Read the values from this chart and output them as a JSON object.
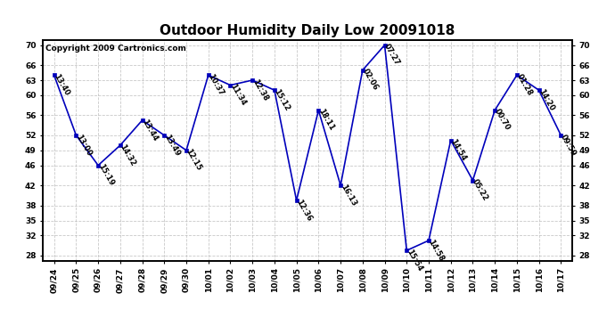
{
  "title": "Outdoor Humidity Daily Low 20091018",
  "copyright": "Copyright 2009 Cartronics.com",
  "x_labels": [
    "09/24",
    "09/25",
    "09/26",
    "09/27",
    "09/28",
    "09/29",
    "09/30",
    "10/01",
    "10/02",
    "10/03",
    "10/04",
    "10/05",
    "10/06",
    "10/07",
    "10/08",
    "10/09",
    "10/10",
    "10/11",
    "10/12",
    "10/13",
    "10/14",
    "10/15",
    "10/16",
    "10/17"
  ],
  "y_values": [
    64,
    52,
    46,
    50,
    55,
    52,
    49,
    64,
    62,
    63,
    61,
    39,
    57,
    42,
    65,
    70,
    29,
    31,
    51,
    43,
    57,
    64,
    61,
    52
  ],
  "point_labels": [
    "13:40",
    "13:00",
    "15:19",
    "14:32",
    "13:44",
    "13:49",
    "12:15",
    "10:37",
    "11:34",
    "12:38",
    "15:12",
    "12:36",
    "18:11",
    "16:13",
    "02:06",
    "07:27",
    "15:54",
    "14:58",
    "14:54",
    "05:22",
    "00:70",
    "01:28",
    "14:20",
    "09:59"
  ],
  "ylim": [
    27,
    71
  ],
  "yticks": [
    28,
    32,
    35,
    38,
    42,
    46,
    49,
    52,
    56,
    60,
    63,
    66,
    70
  ],
  "line_color": "#0000bb",
  "marker_color": "#0000bb",
  "background_color": "#ffffff",
  "grid_color": "#bbbbbb",
  "title_fontsize": 11,
  "label_fontsize": 6.5,
  "copyright_fontsize": 6.5,
  "annot_fontsize": 6.0
}
